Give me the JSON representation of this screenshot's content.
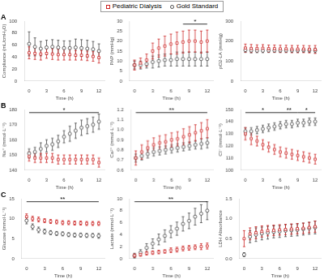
{
  "chart_data": [
    {
      "type": "scatter",
      "x": [
        0,
        1,
        2,
        3,
        4,
        5,
        6,
        7,
        8,
        9,
        10,
        11,
        12
      ],
      "xlabel": "Time (h)",
      "ylabel": "Compliance (mL/cmH₂O)",
      "xlim": [
        -0.8,
        13.0
      ],
      "xticks": [
        0,
        3,
        6,
        9,
        12
      ],
      "ylim": [
        0,
        100
      ],
      "yticks": [
        0,
        20,
        40,
        60,
        80,
        100
      ],
      "grid": false,
      "legend": "top",
      "series": [
        {
          "name": "Pediatric Dialysis",
          "color": "#cc2222",
          "marker": "square",
          "values": [
            47,
            46,
            45,
            46,
            45,
            44,
            44,
            44,
            43,
            43,
            42,
            41,
            39
          ],
          "errors": [
            10,
            10,
            10,
            8,
            9,
            9,
            9,
            9,
            8,
            8,
            8,
            8,
            9
          ]
        },
        {
          "name": "Gold Standard",
          "color": "#444444",
          "marker": "circle",
          "values": [
            62,
            57,
            54,
            56,
            57,
            56,
            55,
            55,
            56,
            55,
            54,
            53,
            50
          ],
          "errors": [
            20,
            15,
            12,
            12,
            12,
            12,
            12,
            12,
            14,
            14,
            14,
            13,
            12
          ]
        }
      ],
      "annotations": [
        {
          "text": "A"
        }
      ]
    },
    {
      "type": "scatter",
      "x": [
        0,
        1,
        2,
        3,
        4,
        5,
        6,
        7,
        8,
        9,
        10,
        11,
        12
      ],
      "xlabel": "Time (h)",
      "ylabel": "PAP (mmHg)",
      "xlim": [
        -0.8,
        13.0
      ],
      "xticks": [
        0,
        3,
        6,
        9,
        12
      ],
      "ylim": [
        0,
        30
      ],
      "yticks": [
        0,
        5,
        10,
        15,
        20,
        25,
        30
      ],
      "grid": false,
      "series": [
        {
          "name": "Pediatric Dialysis",
          "color": "#cc2222",
          "marker": "square",
          "values": [
            8.0,
            9.0,
            10.5,
            15.0,
            16.5,
            17.5,
            18.5,
            19.0,
            19.5,
            20.0,
            20.0,
            19.5,
            20.0
          ],
          "errors": [
            2.5,
            2.5,
            3.0,
            4.0,
            4.5,
            5.0,
            5.0,
            5.5,
            5.5,
            5.5,
            5.5,
            5.5,
            5.5
          ]
        },
        {
          "name": "Gold Standard",
          "color": "#444444",
          "marker": "circle",
          "values": [
            8.0,
            8.0,
            8.5,
            9.5,
            10.0,
            10.5,
            10.5,
            11.0,
            11.0,
            11.0,
            11.0,
            11.0,
            11.0
          ],
          "errors": [
            2.0,
            2.0,
            2.0,
            3.0,
            3.0,
            3.0,
            3.0,
            3.5,
            3.5,
            3.5,
            3.5,
            3.5,
            3.5
          ]
        }
      ],
      "annotations": [
        {
          "text": "*",
          "x": [
            8,
            12
          ]
        }
      ]
    },
    {
      "type": "scatter",
      "x": [
        0,
        1,
        2,
        3,
        4,
        5,
        6,
        7,
        8,
        9,
        10,
        11,
        12
      ],
      "xlabel": "Time (h)",
      "ylabel": "pO2-LA (mmHg)",
      "xlim": [
        -0.8,
        13.0
      ],
      "xticks": [
        0,
        3,
        6,
        9,
        12
      ],
      "ylim": [
        0,
        300
      ],
      "yticks": [
        0,
        100,
        200,
        300
      ],
      "grid": false,
      "series": [
        {
          "name": "Pediatric Dialysis",
          "color": "#cc2222",
          "marker": "square",
          "values": [
            165,
            163,
            163,
            164,
            162,
            162,
            161,
            161,
            160,
            160,
            160,
            159,
            158
          ],
          "errors": [
            20,
            20,
            18,
            18,
            18,
            18,
            18,
            18,
            18,
            18,
            18,
            18,
            20
          ]
        },
        {
          "name": "Gold Standard",
          "color": "#444444",
          "marker": "circle",
          "values": [
            155,
            153,
            152,
            152,
            153,
            153,
            153,
            153,
            153,
            153,
            154,
            154,
            153
          ],
          "errors": [
            12,
            12,
            10,
            10,
            10,
            10,
            10,
            10,
            10,
            10,
            10,
            10,
            12
          ]
        }
      ]
    },
    {
      "type": "scatter",
      "x": [
        0,
        1,
        2,
        3,
        4,
        5,
        6,
        7,
        8,
        9,
        10,
        11,
        12
      ],
      "xlabel": "Time (h)",
      "ylabel": "Na⁺ (mmol·L⁻¹)",
      "xlim": [
        -0.8,
        13.0
      ],
      "xticks": [
        0,
        3,
        6,
        9,
        12
      ],
      "ylim": [
        140,
        180
      ],
      "yticks": [
        140,
        150,
        160,
        170,
        180
      ],
      "grid": false,
      "series": [
        {
          "name": "Pediatric Dialysis",
          "color": "#cc2222",
          "marker": "square",
          "values": [
            149,
            148,
            148,
            148,
            148,
            147,
            147,
            147,
            147,
            147,
            147,
            147,
            145
          ],
          "errors": [
            3,
            3,
            3,
            3,
            3,
            3,
            3,
            3,
            3,
            3,
            3,
            3,
            3
          ]
        },
        {
          "name": "Gold Standard",
          "color": "#444444",
          "marker": "circle",
          "values": [
            151,
            152,
            154,
            156,
            157,
            159,
            162,
            164,
            166,
            168,
            169,
            170,
            172
          ],
          "errors": [
            3,
            3,
            4,
            4,
            4,
            4,
            4,
            5,
            5,
            5,
            5,
            5,
            5
          ]
        }
      ],
      "annotations": [
        {
          "text": "*",
          "x": [
            0,
            12
          ]
        },
        {
          "text": "B"
        }
      ]
    },
    {
      "type": "scatter",
      "x": [
        0,
        1,
        2,
        3,
        4,
        5,
        6,
        7,
        8,
        9,
        10,
        11,
        12
      ],
      "xlabel": "Time (h)",
      "ylabel": "Ca²⁺ (mmol·L⁻¹)",
      "xlim": [
        -0.8,
        13.0
      ],
      "xticks": [
        0,
        3,
        6,
        9,
        12
      ],
      "ylim": [
        0.6,
        1.2
      ],
      "yticks": [
        0.6,
        0.7,
        0.8,
        0.9,
        {
          "value": 1.0,
          "label": "1.0"
        },
        1.1,
        1.2
      ],
      "grid": false,
      "series": [
        {
          "name": "Pediatric Dialysis",
          "color": "#cc2222",
          "marker": "square",
          "values": [
            0.72,
            0.78,
            0.82,
            0.85,
            0.87,
            0.88,
            0.9,
            0.91,
            0.93,
            0.95,
            0.97,
            0.99,
            1.01
          ],
          "errors": [
            0.07,
            0.07,
            0.07,
            0.07,
            0.07,
            0.07,
            0.07,
            0.07,
            0.08,
            0.08,
            0.08,
            0.08,
            0.09
          ]
        },
        {
          "name": "Gold Standard",
          "color": "#444444",
          "marker": "circle",
          "values": [
            0.72,
            0.74,
            0.76,
            0.78,
            0.79,
            0.8,
            0.81,
            0.82,
            0.83,
            0.84,
            0.85,
            0.86,
            0.87
          ],
          "errors": [
            0.04,
            0.04,
            0.04,
            0.04,
            0.04,
            0.04,
            0.04,
            0.04,
            0.04,
            0.04,
            0.04,
            0.05,
            0.05
          ]
        }
      ],
      "annotations": [
        {
          "text": "**",
          "x": [
            0,
            12
          ]
        }
      ]
    },
    {
      "type": "scatter",
      "x": [
        0,
        1,
        2,
        3,
        4,
        5,
        6,
        7,
        8,
        9,
        10,
        11,
        12
      ],
      "xlabel": "Time (h)",
      "ylabel": "Cl⁻ (mmol·L⁻¹)",
      "xlim": [
        -0.8,
        13.0
      ],
      "xticks": [
        0,
        3,
        6,
        9,
        12
      ],
      "ylim": [
        100,
        150
      ],
      "yticks": [
        100,
        110,
        120,
        130,
        140,
        150
      ],
      "grid": false,
      "series": [
        {
          "name": "Pediatric Dialysis",
          "color": "#cc2222",
          "marker": "square",
          "values": [
            130,
            126,
            124,
            121,
            119,
            117,
            115,
            114,
            113,
            112,
            111,
            110,
            109
          ],
          "errors": [
            5,
            5,
            4,
            4,
            4,
            4,
            4,
            4,
            4,
            4,
            4,
            4,
            4
          ]
        },
        {
          "name": "Gold Standard",
          "color": "#444444",
          "marker": "circle",
          "values": [
            132,
            132,
            133,
            134,
            135,
            136,
            137,
            138,
            138,
            139,
            139,
            140,
            140
          ],
          "errors": [
            3,
            3,
            3,
            3,
            3,
            3,
            3,
            3,
            3,
            3,
            3,
            3,
            3
          ]
        }
      ],
      "annotations": [
        {
          "text": "*",
          "x": [
            0,
            6
          ]
        },
        {
          "text": "**",
          "x": [
            6,
            9
          ]
        },
        {
          "text": "*",
          "x": [
            9,
            12
          ]
        }
      ]
    },
    {
      "type": "scatter",
      "x": [
        0,
        1,
        2,
        3,
        4,
        5,
        6,
        7,
        8,
        9,
        10,
        11,
        12
      ],
      "xlabel": "Time (h)",
      "ylabel": "Glucose (mmol·L⁻¹)",
      "xlim": [
        -0.8,
        13.0
      ],
      "xticks": [
        0,
        3,
        6,
        9,
        12
      ],
      "ylim": [
        0,
        15
      ],
      "yticks": [
        0,
        5,
        10,
        15
      ],
      "grid": false,
      "series": [
        {
          "name": "Pediatric Dialysis",
          "color": "#cc2222",
          "marker": "square",
          "values": [
            10.5,
            10.0,
            9.8,
            9.5,
            9.3,
            9.2,
            9.0,
            9.0,
            8.9,
            8.9,
            8.8,
            8.8,
            8.8
          ],
          "errors": [
            0.7,
            0.6,
            0.6,
            0.5,
            0.5,
            0.5,
            0.5,
            0.5,
            0.5,
            0.5,
            0.5,
            0.5,
            0.5
          ]
        },
        {
          "name": "Gold Standard",
          "color": "#444444",
          "marker": "circle",
          "values": [
            9.5,
            8.0,
            7.2,
            6.8,
            6.5,
            6.3,
            6.2,
            6.0,
            5.9,
            5.9,
            5.8,
            5.8,
            5.7
          ],
          "errors": [
            0.8,
            0.7,
            0.7,
            0.6,
            0.5,
            0.5,
            0.5,
            0.5,
            0.5,
            0.5,
            0.5,
            0.5,
            0.6
          ]
        }
      ],
      "annotations": [
        {
          "text": "**",
          "x": [
            0,
            12
          ]
        },
        {
          "text": "C"
        }
      ]
    },
    {
      "type": "scatter",
      "x": [
        0,
        1,
        2,
        3,
        4,
        5,
        6,
        7,
        8,
        9,
        10,
        11,
        12
      ],
      "xlabel": "Time (h)",
      "ylabel": "Lactate (mmol·L⁻¹)",
      "xlim": [
        -0.8,
        13.0
      ],
      "xticks": [
        0,
        3,
        6,
        9,
        12
      ],
      "ylim": [
        0,
        10
      ],
      "yticks": [
        0,
        2,
        4,
        6,
        8,
        10
      ],
      "grid": false,
      "series": [
        {
          "name": "Pediatric Dialysis",
          "color": "#cc2222",
          "marker": "square",
          "values": [
            0.5,
            0.7,
            0.9,
            1.0,
            1.1,
            1.2,
            1.4,
            1.5,
            1.7,
            1.8,
            1.9,
            2.0,
            2.1
          ],
          "errors": [
            0.3,
            0.3,
            0.3,
            0.3,
            0.3,
            0.3,
            0.4,
            0.4,
            0.4,
            0.4,
            0.4,
            0.5,
            0.5
          ]
        },
        {
          "name": "Gold Standard",
          "color": "#444444",
          "marker": "circle",
          "values": [
            0.5,
            1.0,
            1.8,
            2.5,
            3.2,
            3.8,
            4.5,
            5.0,
            5.8,
            6.3,
            7.0,
            7.5,
            8.0
          ],
          "errors": [
            0.4,
            0.5,
            0.7,
            0.8,
            0.9,
            1.0,
            1.0,
            1.1,
            1.2,
            1.3,
            1.4,
            1.5,
            1.5
          ]
        }
      ],
      "annotations": [
        {
          "text": "**",
          "x": [
            0,
            12
          ]
        }
      ]
    },
    {
      "type": "scatter",
      "x": [
        0,
        1,
        2,
        3,
        4,
        5,
        6,
        7,
        8,
        9,
        10,
        11,
        12
      ],
      "xlabel": "Time (h)",
      "ylabel": "LDH Absorbance",
      "xlim": [
        -0.8,
        13.0
      ],
      "xticks": [
        0,
        3,
        6,
        9,
        12
      ],
      "ylim": [
        0,
        1.5
      ],
      "yticks": [
        {
          "value": 0,
          "label": "0.0"
        },
        0.5,
        {
          "value": 1.0,
          "label": "1.0"
        },
        1.5
      ],
      "grid": false,
      "series": [
        {
          "name": "Pediatric Dialysis",
          "color": "#cc2222",
          "marker": "square",
          "values": [
            0.5,
            0.62,
            0.65,
            0.68,
            0.7,
            0.71,
            0.72,
            0.73,
            0.74,
            0.75,
            0.76,
            0.78,
            0.8
          ],
          "errors": [
            0.2,
            0.15,
            0.15,
            0.14,
            0.13,
            0.13,
            0.13,
            0.13,
            0.13,
            0.13,
            0.13,
            0.13,
            0.14
          ]
        },
        {
          "name": "Gold Standard",
          "color": "#444444",
          "marker": "circle",
          "values": [
            0.1,
            0.55,
            0.6,
            0.63,
            0.65,
            0.67,
            0.68,
            0.7,
            0.71,
            0.72,
            0.74,
            0.76,
            0.78
          ],
          "errors": [
            0.05,
            0.15,
            0.17,
            0.16,
            0.16,
            0.15,
            0.15,
            0.15,
            0.15,
            0.15,
            0.15,
            0.15,
            0.16
          ]
        }
      ]
    }
  ]
}
